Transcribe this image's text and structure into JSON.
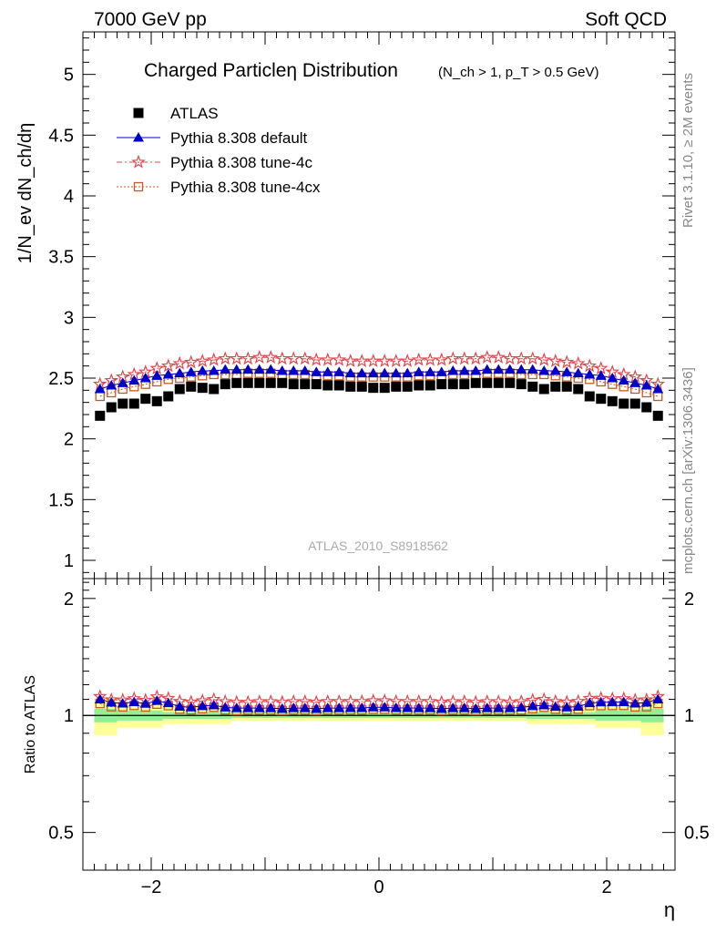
{
  "header": {
    "energy_label": "7000 GeV pp",
    "category_label": "Soft QCD",
    "right_text_top": "Rivet 3.1.10, ≥ 2M events",
    "right_text_bottom": "mcplots.cern.ch [arXiv:1306.3436]"
  },
  "chart_data": {
    "type": "scatter",
    "title": "Charged Particleη Distribution",
    "subtitle": "(N_ch > 1, p_T > 0.5 GeV)",
    "watermark": "ATLAS_2010_S8918562",
    "xlabel": "η",
    "ylabel": "1/N_ev dN_ch/dη",
    "ratio_ylabel": "Ratio to ATLAS",
    "xlim": [
      -2.6,
      2.6
    ],
    "ylim": [
      0.85,
      5.35
    ],
    "ratio_ylim": [
      0.4,
      2.25
    ],
    "x_ticks": [
      -2,
      0,
      2
    ],
    "x_tick_labels": [
      "−2",
      "0",
      "2"
    ],
    "y_ticks": [
      1,
      1.5,
      2,
      2.5,
      3,
      3.5,
      4,
      4.5,
      5
    ],
    "y_tick_labels": [
      "1",
      "1.5",
      "2",
      "2.5",
      "3",
      "3.5",
      "4",
      "4.5",
      "5"
    ],
    "ratio_ticks": [
      0.5,
      1,
      2
    ],
    "ratio_tick_labels": [
      "0.5",
      "1",
      "2"
    ],
    "legend_position": "top-left",
    "grid": false,
    "x": [
      -2.45,
      -2.35,
      -2.25,
      -2.15,
      -2.05,
      -1.95,
      -1.85,
      -1.75,
      -1.65,
      -1.55,
      -1.45,
      -1.35,
      -1.25,
      -1.15,
      -1.05,
      -0.95,
      -0.85,
      -0.75,
      -0.65,
      -0.55,
      -0.45,
      -0.35,
      -0.25,
      -0.15,
      -0.05,
      0.05,
      0.15,
      0.25,
      0.35,
      0.45,
      0.55,
      0.65,
      0.75,
      0.85,
      0.95,
      1.05,
      1.15,
      1.25,
      1.35,
      1.45,
      1.55,
      1.65,
      1.75,
      1.85,
      1.95,
      2.05,
      2.15,
      2.25,
      2.35,
      2.45
    ],
    "series": [
      {
        "name": "ATLAS",
        "values": [
          2.19,
          2.26,
          2.29,
          2.29,
          2.33,
          2.31,
          2.35,
          2.41,
          2.43,
          2.42,
          2.41,
          2.45,
          2.46,
          2.46,
          2.46,
          2.46,
          2.46,
          2.45,
          2.45,
          2.45,
          2.44,
          2.44,
          2.43,
          2.43,
          2.42,
          2.42,
          2.43,
          2.43,
          2.44,
          2.44,
          2.45,
          2.45,
          2.45,
          2.46,
          2.46,
          2.46,
          2.46,
          2.45,
          2.43,
          2.41,
          2.43,
          2.43,
          2.41,
          2.35,
          2.33,
          2.31,
          2.29,
          2.29,
          2.26,
          2.19
        ]
      },
      {
        "name": "Pythia 8.308 default",
        "values": [
          2.41,
          2.44,
          2.46,
          2.48,
          2.5,
          2.52,
          2.53,
          2.54,
          2.55,
          2.56,
          2.56,
          2.57,
          2.57,
          2.57,
          2.57,
          2.57,
          2.56,
          2.56,
          2.56,
          2.55,
          2.55,
          2.55,
          2.54,
          2.54,
          2.54,
          2.54,
          2.54,
          2.54,
          2.55,
          2.55,
          2.55,
          2.56,
          2.56,
          2.56,
          2.57,
          2.57,
          2.57,
          2.57,
          2.57,
          2.56,
          2.56,
          2.55,
          2.54,
          2.53,
          2.52,
          2.5,
          2.48,
          2.46,
          2.44,
          2.41
        ]
      },
      {
        "name": "Pythia 8.308 tune-4c",
        "values": [
          2.45,
          2.48,
          2.51,
          2.53,
          2.55,
          2.58,
          2.6,
          2.62,
          2.63,
          2.64,
          2.65,
          2.66,
          2.66,
          2.66,
          2.67,
          2.67,
          2.66,
          2.66,
          2.66,
          2.65,
          2.65,
          2.65,
          2.64,
          2.64,
          2.64,
          2.64,
          2.64,
          2.64,
          2.65,
          2.65,
          2.65,
          2.66,
          2.66,
          2.66,
          2.67,
          2.67,
          2.66,
          2.66,
          2.66,
          2.65,
          2.64,
          2.63,
          2.62,
          2.6,
          2.58,
          2.55,
          2.53,
          2.51,
          2.48,
          2.45
        ]
      },
      {
        "name": "Pythia 8.308 tune-4cx",
        "values": [
          2.35,
          2.38,
          2.41,
          2.43,
          2.45,
          2.47,
          2.49,
          2.5,
          2.51,
          2.52,
          2.53,
          2.53,
          2.53,
          2.54,
          2.54,
          2.54,
          2.53,
          2.53,
          2.53,
          2.52,
          2.52,
          2.52,
          2.51,
          2.51,
          2.51,
          2.51,
          2.51,
          2.51,
          2.52,
          2.52,
          2.52,
          2.53,
          2.53,
          2.53,
          2.54,
          2.54,
          2.54,
          2.53,
          2.53,
          2.53,
          2.52,
          2.51,
          2.5,
          2.49,
          2.47,
          2.45,
          2.43,
          2.41,
          2.38,
          2.35
        ]
      }
    ],
    "ratio_band_inner": [
      {
        "x1": -2.5,
        "x2": -2.3,
        "lo": 0.96,
        "hi": 1.04
      },
      {
        "x1": -2.3,
        "x2": -1.9,
        "lo": 0.97,
        "hi": 1.03
      },
      {
        "x1": -1.9,
        "x2": -1.3,
        "lo": 0.98,
        "hi": 1.02
      },
      {
        "x1": -1.3,
        "x2": 1.3,
        "lo": 0.985,
        "hi": 1.015
      },
      {
        "x1": 1.3,
        "x2": 1.9,
        "lo": 0.98,
        "hi": 1.02
      },
      {
        "x1": 1.9,
        "x2": 2.3,
        "lo": 0.97,
        "hi": 1.03
      },
      {
        "x1": 2.3,
        "x2": 2.5,
        "lo": 0.96,
        "hi": 1.04
      }
    ],
    "ratio_band_outer": [
      {
        "x1": -2.5,
        "x2": -2.3,
        "lo": 0.89,
        "hi": 1.11
      },
      {
        "x1": -2.3,
        "x2": -1.9,
        "lo": 0.93,
        "hi": 1.07
      },
      {
        "x1": -1.9,
        "x2": -1.3,
        "lo": 0.95,
        "hi": 1.05
      },
      {
        "x1": -1.3,
        "x2": 1.3,
        "lo": 0.97,
        "hi": 1.03
      },
      {
        "x1": 1.3,
        "x2": 1.9,
        "lo": 0.95,
        "hi": 1.05
      },
      {
        "x1": 1.9,
        "x2": 2.3,
        "lo": 0.93,
        "hi": 1.07
      },
      {
        "x1": 2.3,
        "x2": 2.5,
        "lo": 0.89,
        "hi": 1.11
      }
    ],
    "colors": {
      "ATLAS": "#000000",
      "default": "#0000cc",
      "tune4c": "#e0474c",
      "tune4cx": "#c85a1e",
      "band_inner": "#95ee95",
      "band_outer": "#ffff99"
    }
  }
}
